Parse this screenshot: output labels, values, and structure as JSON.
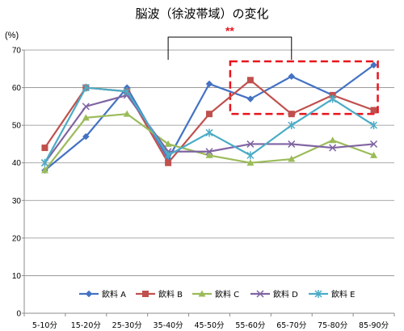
{
  "chart_data": {
    "type": "line",
    "title": "脳波（徐波帯域）の変化",
    "ylabel": "(%)",
    "xlabel": "",
    "ylim": [
      0,
      70
    ],
    "yticks": [
      0,
      10,
      20,
      30,
      40,
      50,
      60,
      70
    ],
    "grid": true,
    "legend_position": "bottom-inside",
    "categories": [
      "5-10分",
      "15-20分",
      "25-30分",
      "35-40分",
      "45-50分",
      "55-60分",
      "65-70分",
      "75-80分",
      "85-90分"
    ],
    "series": [
      {
        "name": "飲料 A",
        "color": "#4472C4",
        "marker": "diamond",
        "values": [
          38,
          47,
          60,
          41,
          61,
          57,
          63,
          58,
          66
        ]
      },
      {
        "name": "飲料 B",
        "color": "#C0504D",
        "marker": "square",
        "values": [
          44,
          60,
          59,
          40,
          53,
          62,
          53,
          58,
          54
        ]
      },
      {
        "name": "飲料 C",
        "color": "#9BBB59",
        "marker": "triangle",
        "values": [
          38,
          52,
          53,
          45,
          42,
          40,
          41,
          46,
          42
        ]
      },
      {
        "name": "飲料 D",
        "color": "#8064A2",
        "marker": "x",
        "values": [
          40,
          55,
          58,
          43,
          43,
          45,
          45,
          44,
          45
        ]
      },
      {
        "name": "飲料 E",
        "color": "#4BACC6",
        "marker": "star",
        "values": [
          40,
          60,
          59,
          42,
          48,
          42,
          50,
          57,
          50
        ]
      }
    ],
    "annotations": {
      "significance": "**",
      "significance_color": "#E8141C",
      "bracket_from": "35-40分",
      "bracket_to": "65-70分",
      "highlight_from": "55-60分",
      "highlight_to": "85-90分",
      "highlight_range": [
        53,
        67
      ],
      "highlight_color": "#E8141C"
    }
  }
}
